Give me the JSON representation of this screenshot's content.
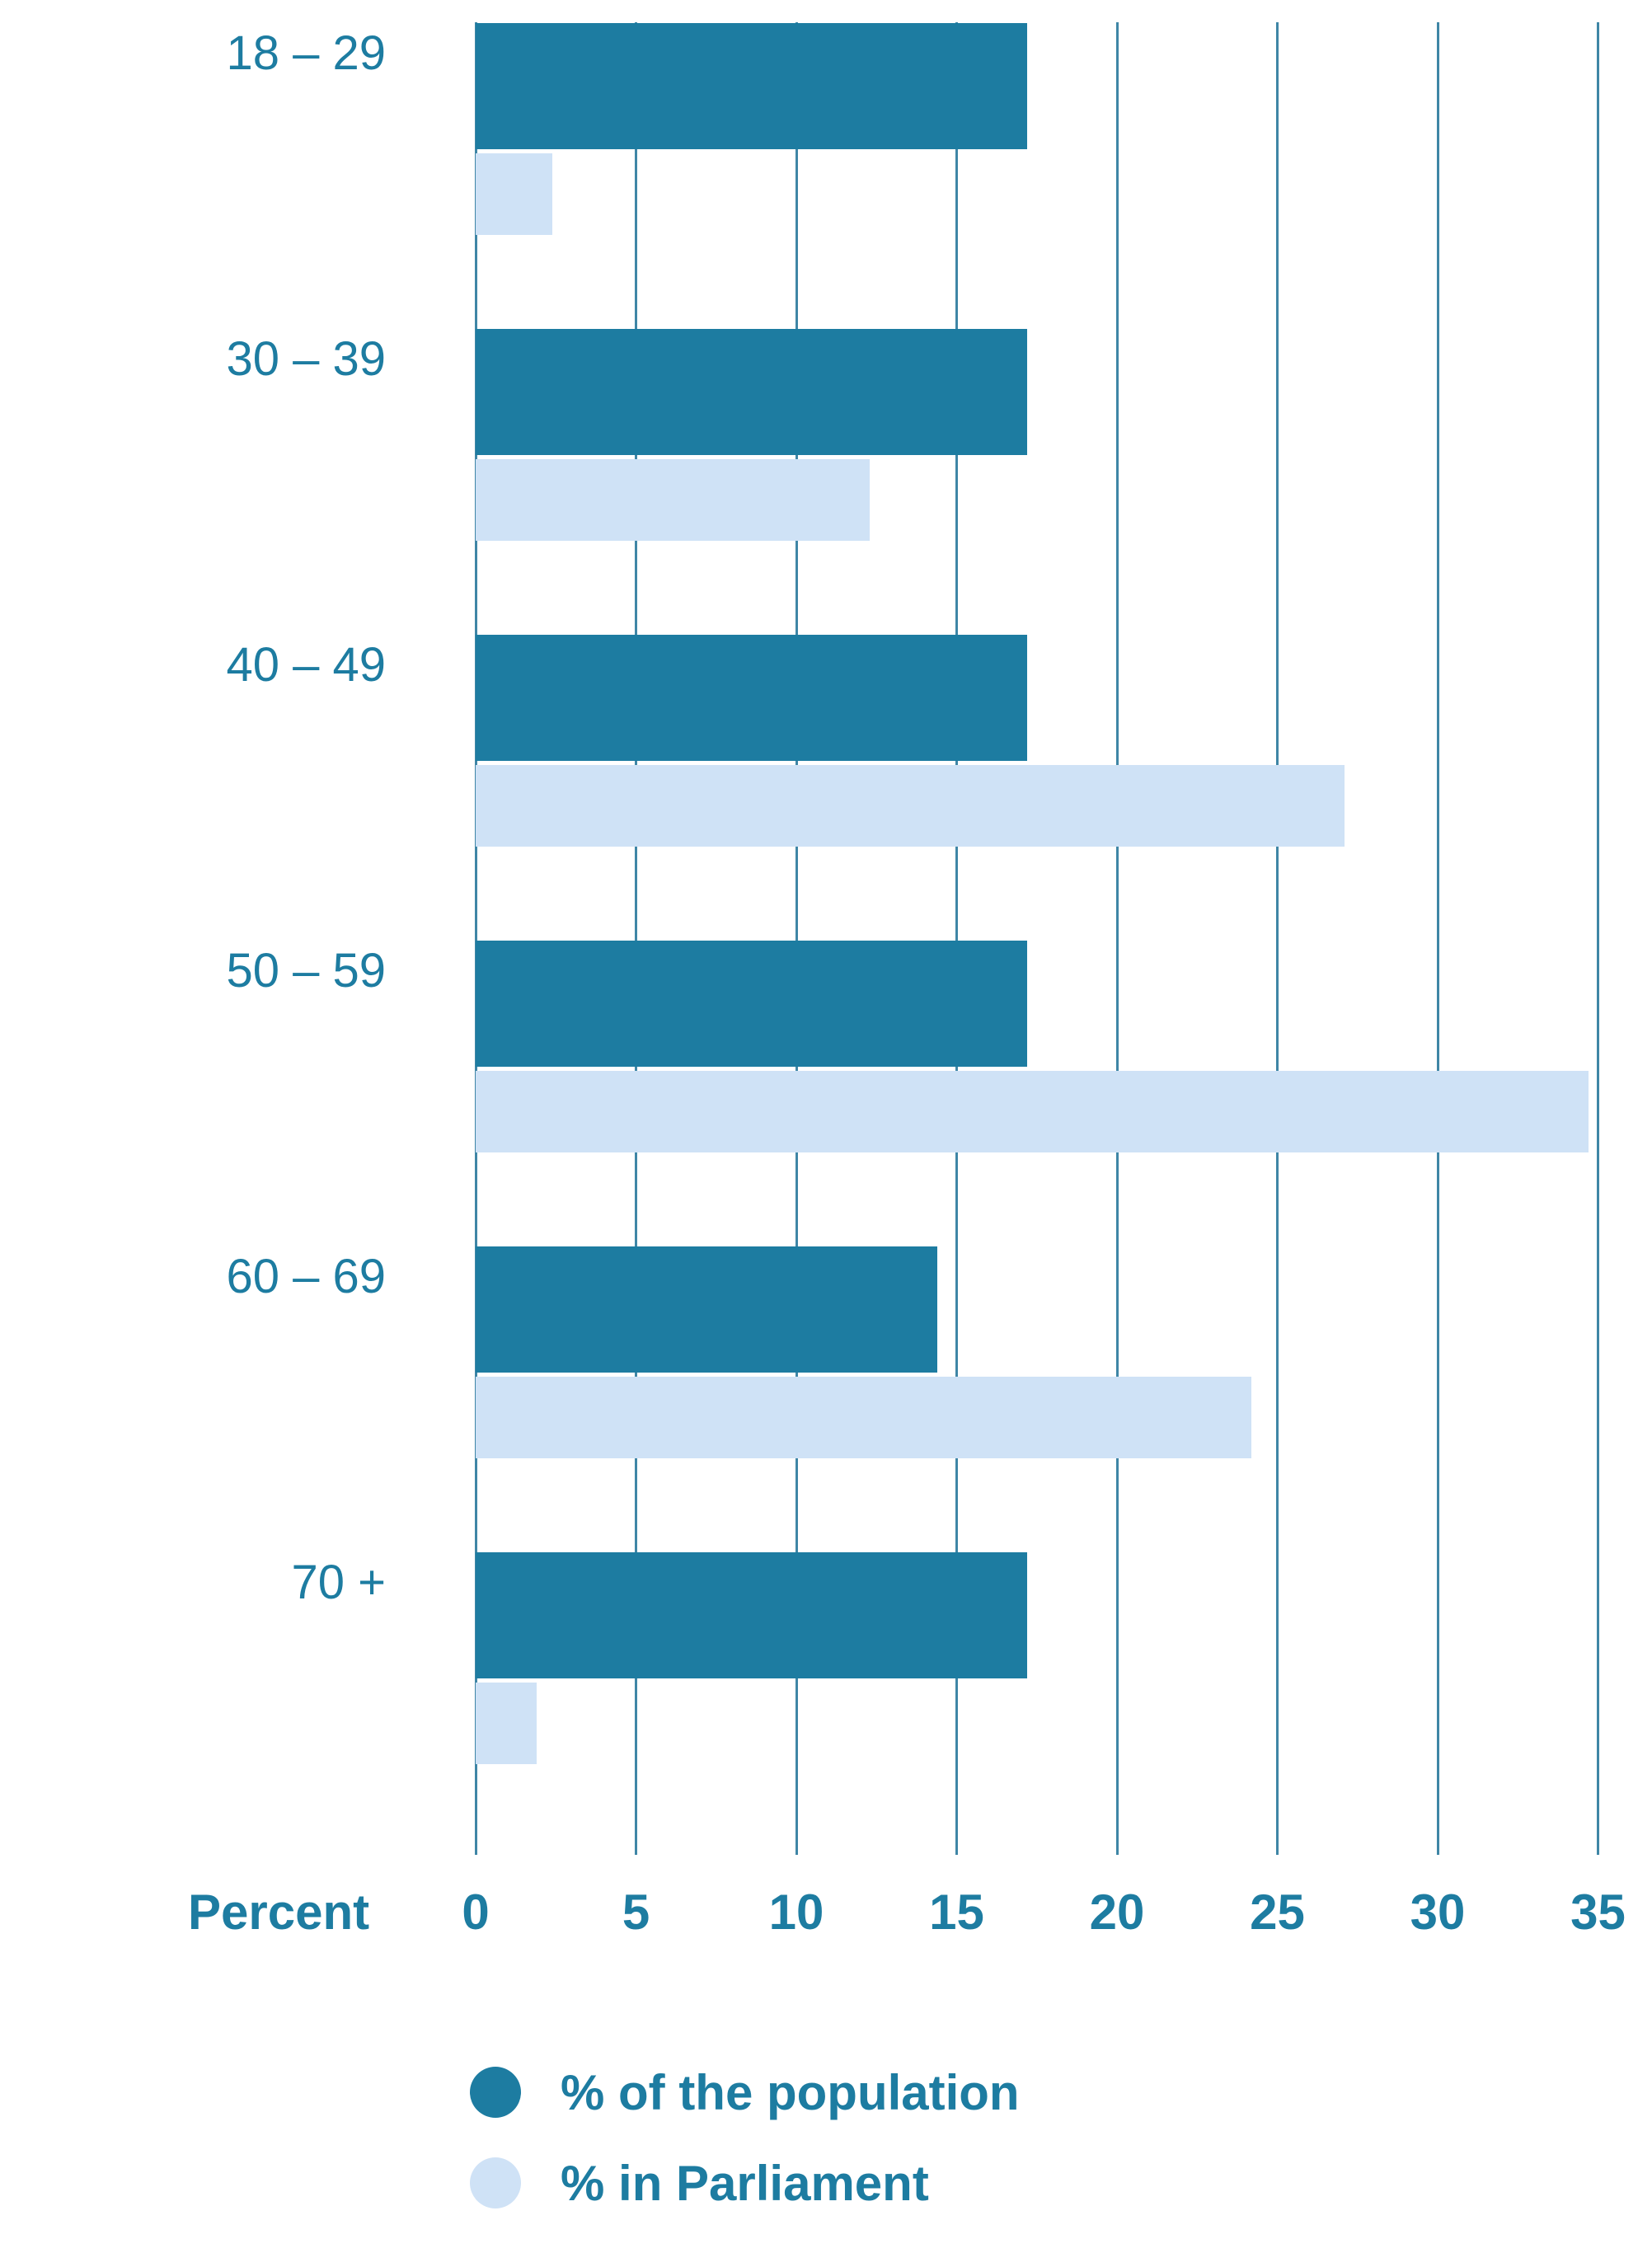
{
  "chart_data": {
    "type": "bar",
    "orientation": "horizontal",
    "title": "",
    "xlabel": "Percent",
    "ylabel": "",
    "xlim": [
      0,
      35
    ],
    "xticks": [
      0,
      5,
      10,
      15,
      20,
      25,
      30,
      35
    ],
    "xtick_labels": [
      "0",
      "5",
      "10",
      "15",
      "20",
      "25",
      "30",
      "35"
    ],
    "grid": true,
    "legend_position": "bottom",
    "categories": [
      "18 – 29",
      "30 – 39",
      "40 – 49",
      "50 – 59",
      "60 – 69",
      "70 +"
    ],
    "series": [
      {
        "name": "% of the population",
        "color": "#1d7ca1",
        "values": [
          17.2,
          17.2,
          17.2,
          17.2,
          14.4,
          17.2
        ]
      },
      {
        "name": "% in Parliament",
        "color": "#cfe2f6",
        "values": [
          2.4,
          12.3,
          27.1,
          34.7,
          24.2,
          1.9
        ]
      }
    ]
  },
  "axis": {
    "title": "Percent"
  },
  "colors": {
    "population": "#1d7ca1",
    "parliament": "#cfe2f6",
    "gridline": "#3f86a6",
    "text": "#1d7ca1"
  }
}
